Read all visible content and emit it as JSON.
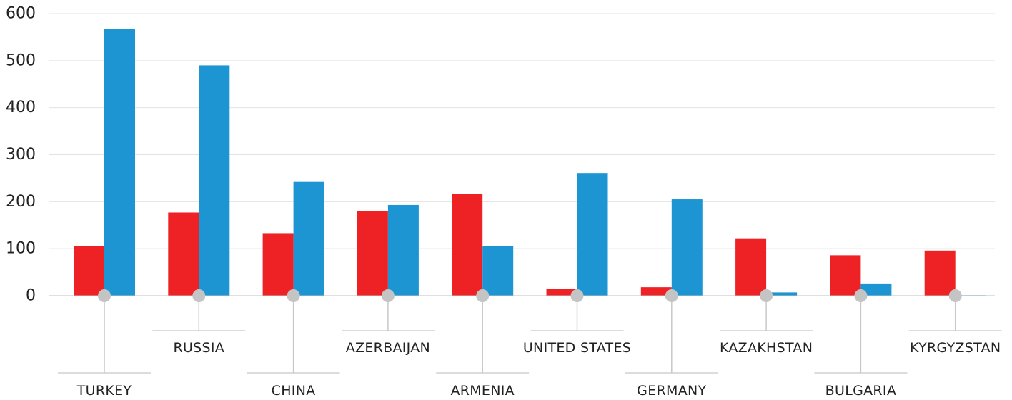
{
  "chart_data": {
    "type": "bar",
    "categories": [
      "TURKEY",
      "RUSSIA",
      "CHINA",
      "AZERBAIJAN",
      "ARMENIA",
      "UNITED STATES",
      "GERMANY",
      "KAZAKHSTAN",
      "BULGARIA",
      "KYRGYZSTAN"
    ],
    "series": [
      {
        "values": [
          105,
          177,
          133,
          180,
          216,
          15,
          18,
          122,
          86,
          96
        ]
      },
      {
        "values": [
          568,
          490,
          242,
          193,
          105,
          261,
          205,
          7,
          26,
          1
        ]
      }
    ],
    "y_ticks": [
      "0",
      "100",
      "200",
      "300",
      "400",
      "500",
      "600"
    ],
    "ylim": [
      0,
      600
    ],
    "title": "",
    "xlabel": "",
    "ylabel": "",
    "grid": true,
    "legend": "none",
    "colors": [
      "#ee2225",
      "#1e95d3"
    ]
  }
}
